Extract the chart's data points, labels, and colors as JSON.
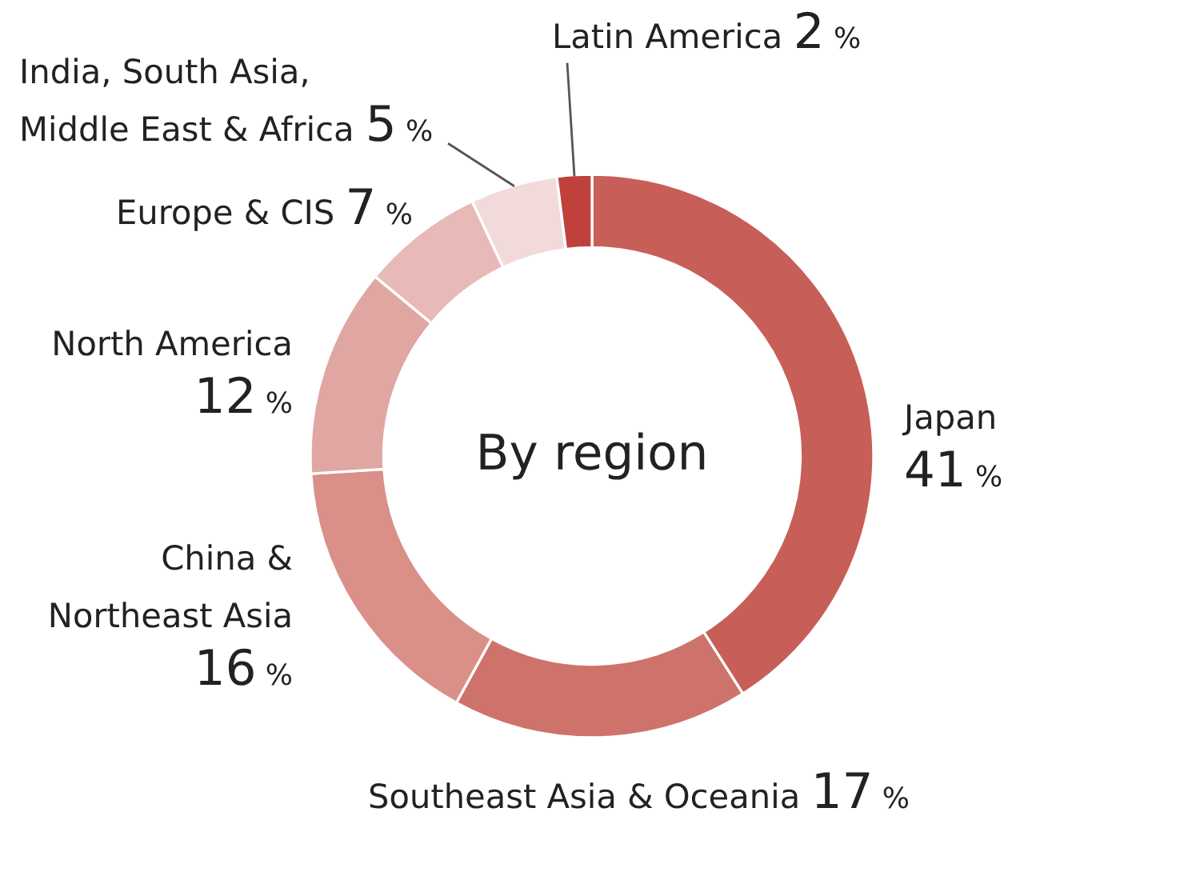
{
  "chart_data": {
    "type": "donut",
    "title": "By region",
    "categories": [
      "Japan",
      "Southeast Asia & Oceania",
      "China & Northeast Asia",
      "North America",
      "Europe & CIS",
      "India, South Asia, Middle East & Africa",
      "Latin America"
    ],
    "values": [
      41,
      17,
      16,
      12,
      7,
      5,
      2
    ],
    "colors": [
      "#c75f58",
      "#cd736c",
      "#da8f89",
      "#e0a6a2",
      "#e7bab7",
      "#f2dada",
      "#c0413b"
    ],
    "value_labels": [
      "41 %",
      "17 %",
      "16 %",
      "12 %",
      "7 %",
      "5 %",
      "2 %"
    ]
  }
}
